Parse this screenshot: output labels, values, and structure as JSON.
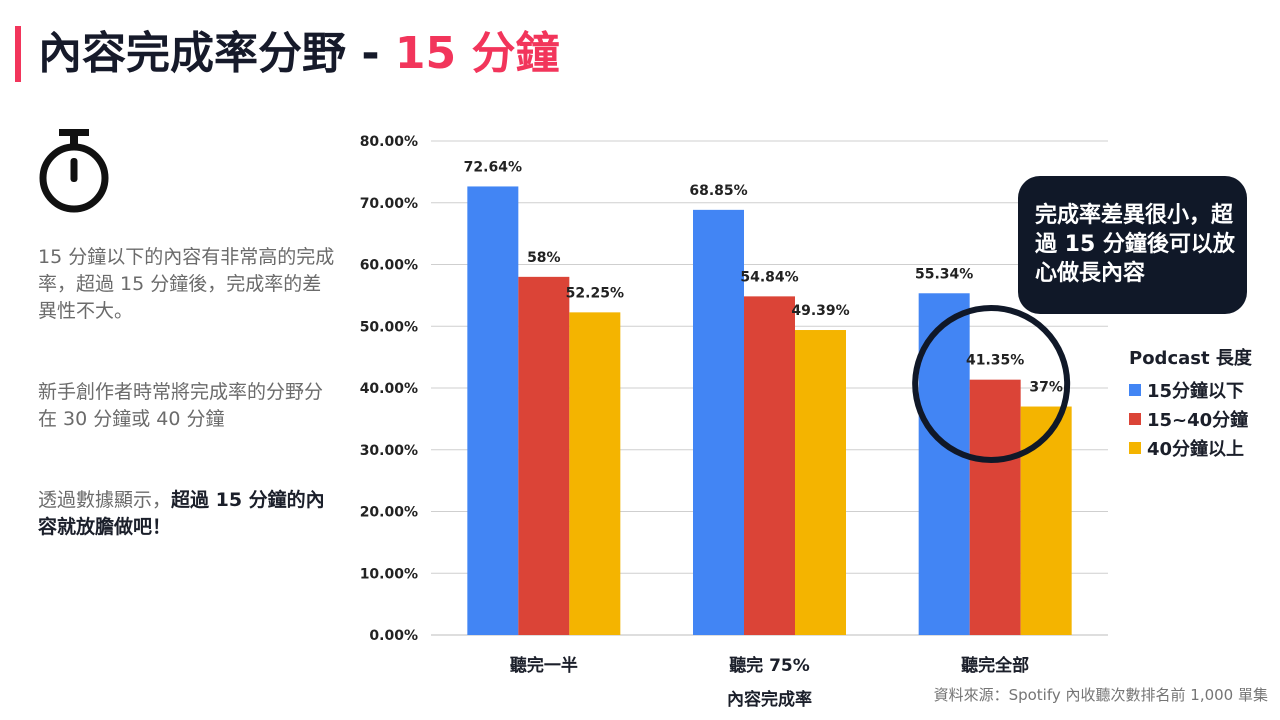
{
  "title": {
    "main": "內容完成率分野 - ",
    "highlight": "15 分鐘"
  },
  "sidebar": {
    "icon": "stopwatch-icon",
    "paragraph1": "15 分鐘以下的內容有非常高的完成率，超過 15 分鐘後，完成率的差異性不大。",
    "paragraph2": "新手創作者時常將完成率的分野分在 30 分鐘或 40 分鐘",
    "paragraph3_plain": "透過數據顯示，",
    "paragraph3_bold": "超過 15 分鐘的內容就放膽做吧！"
  },
  "callout": {
    "text": "完成率差異很小，超過 15 分鐘後可以放心做長內容"
  },
  "source": "資料來源：Spotify 內收聽次數排名前 1,000 單集",
  "colors": {
    "accent": "#f2355b",
    "callout_bg": "#101828",
    "series": [
      "#4285f4",
      "#db4437",
      "#f4b400"
    ]
  },
  "chart_data": {
    "type": "bar",
    "title": "",
    "xlabel": "內容完成率",
    "ylabel": "",
    "categories": [
      "聽完一半",
      "聽完 75%",
      "聽完全部"
    ],
    "series": [
      {
        "name": "15分鐘以下",
        "values": [
          72.64,
          68.85,
          55.34
        ],
        "labels": [
          "72.64%",
          "68.85%",
          "55.34%"
        ]
      },
      {
        "name": "15~40分鐘",
        "values": [
          58,
          54.84,
          41.35
        ],
        "labels": [
          "58%",
          "54.84%",
          "41.35%"
        ]
      },
      {
        "name": "40分鐘以上",
        "values": [
          52.25,
          49.39,
          37
        ],
        "labels": [
          "52.25%",
          "49.39%",
          "37%"
        ]
      }
    ],
    "ylim": [
      0,
      80
    ],
    "yticks": [
      "0.00%",
      "10.00%",
      "20.00%",
      "30.00%",
      "40.00%",
      "50.00%",
      "60.00%",
      "70.00%",
      "80.00%"
    ],
    "grid": true,
    "legend": {
      "title": "Podcast 長度",
      "position": "right"
    },
    "annotation": "circle around 聽完全部 15~40分鐘 and 40分鐘以上"
  }
}
